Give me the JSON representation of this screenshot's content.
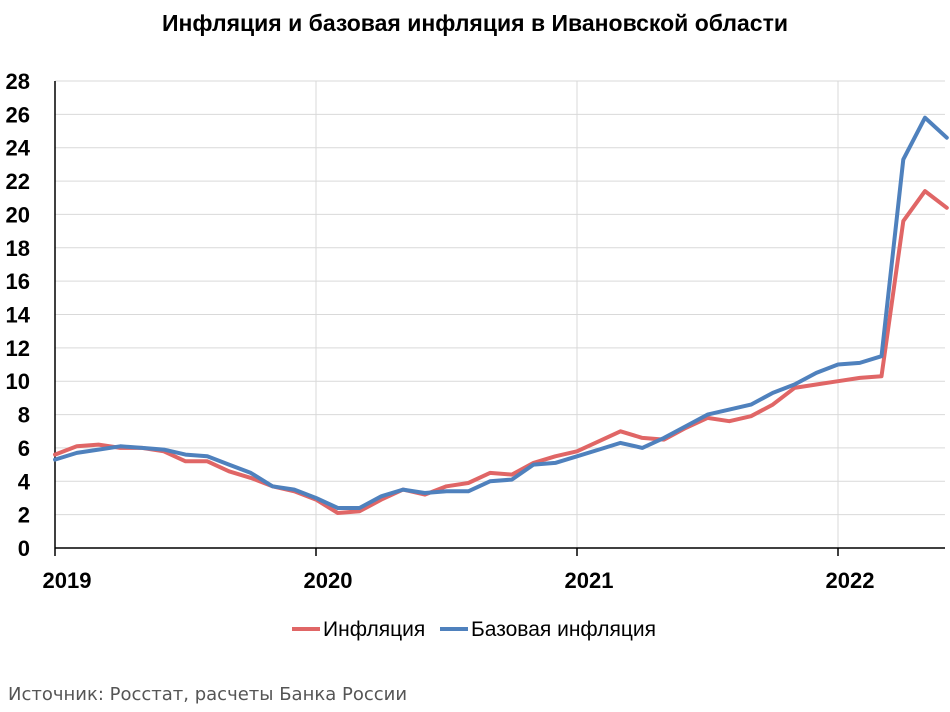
{
  "chart_data": {
    "type": "line",
    "title": "Инфляция и базовая инфляция в Ивановской области",
    "xlabel": "",
    "ylabel": "",
    "ylim": [
      0,
      28
    ],
    "y_ticks": [
      "0",
      "2",
      "4",
      "6",
      "8",
      "10",
      "12",
      "14",
      "16",
      "18",
      "20",
      "22",
      "24",
      "26",
      "28"
    ],
    "x_ticks": [
      "2019",
      "2020",
      "2021",
      "2022"
    ],
    "grid": true,
    "legend_position": "bottom",
    "series": [
      {
        "name": "Инфляция",
        "color": "#e06666",
        "values": [
          5.6,
          6.1,
          6.2,
          6.0,
          6.0,
          5.8,
          5.2,
          5.2,
          4.6,
          4.2,
          3.7,
          3.4,
          2.9,
          2.1,
          2.2,
          2.9,
          3.5,
          3.2,
          3.7,
          3.9,
          4.5,
          4.4,
          5.1,
          5.5,
          5.8,
          6.4,
          7.0,
          6.6,
          6.5,
          7.2,
          7.8,
          7.6,
          7.9,
          8.6,
          9.6,
          9.8,
          10.0,
          10.2,
          10.3,
          19.6,
          21.4,
          20.4
        ]
      },
      {
        "name": "Базовая инфляция",
        "color": "#4f81bd",
        "values": [
          5.3,
          5.7,
          5.9,
          6.1,
          6.0,
          5.9,
          5.6,
          5.5,
          5.0,
          4.5,
          3.7,
          3.5,
          3.0,
          2.4,
          2.4,
          3.1,
          3.5,
          3.3,
          3.4,
          3.4,
          4.0,
          4.1,
          5.0,
          5.1,
          5.5,
          5.9,
          6.3,
          6.0,
          6.6,
          7.3,
          8.0,
          8.3,
          8.6,
          9.3,
          9.8,
          10.5,
          11.0,
          11.1,
          11.5,
          23.3,
          25.8,
          24.6
        ]
      }
    ]
  },
  "footer": {
    "source": "Источник: Росстат, расчеты Банка России"
  }
}
